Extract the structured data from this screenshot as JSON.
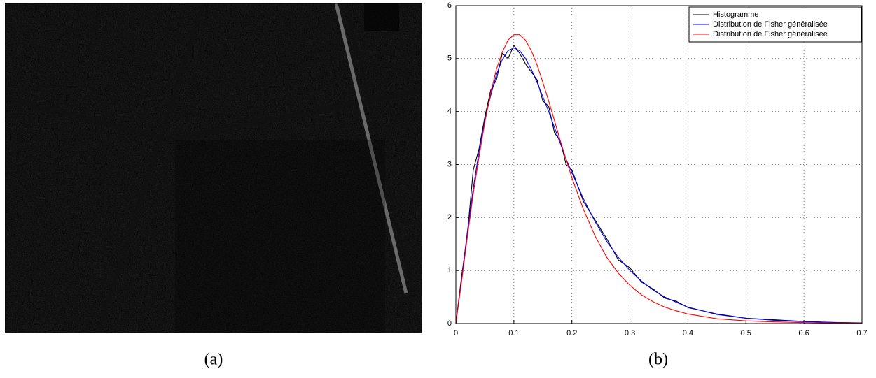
{
  "figure": {
    "captions": [
      "(a)",
      "(b)"
    ]
  },
  "chart_data": {
    "type": "line",
    "x": [
      0,
      0.01,
      0.02,
      0.03,
      0.04,
      0.05,
      0.06,
      0.07,
      0.08,
      0.09,
      0.1,
      0.11,
      0.12,
      0.13,
      0.14,
      0.15,
      0.16,
      0.17,
      0.18,
      0.19,
      0.2,
      0.22,
      0.24,
      0.26,
      0.28,
      0.3,
      0.32,
      0.34,
      0.36,
      0.38,
      0.4,
      0.45,
      0.5,
      0.55,
      0.6,
      0.65,
      0.7
    ],
    "series": [
      {
        "name": "Histogramme",
        "color": "#000000",
        "values": [
          0,
          0.9,
          1.7,
          2.9,
          3.3,
          3.9,
          4.4,
          4.6,
          5.1,
          5.0,
          5.25,
          5.1,
          4.9,
          4.75,
          4.6,
          4.2,
          4.1,
          3.6,
          3.45,
          3.0,
          2.9,
          2.3,
          1.95,
          1.6,
          1.2,
          1.05,
          0.78,
          0.65,
          0.48,
          0.42,
          0.3,
          0.18,
          0.1,
          0.07,
          0.04,
          0.02,
          0.01
        ]
      },
      {
        "name": "Distribution de Fisher généralisée",
        "color": "#0000ff",
        "values": [
          0,
          0.85,
          1.75,
          2.55,
          3.25,
          3.85,
          4.3,
          4.7,
          4.98,
          5.15,
          5.2,
          5.15,
          5.0,
          4.8,
          4.55,
          4.28,
          4.0,
          3.7,
          3.4,
          3.1,
          2.85,
          2.35,
          1.92,
          1.55,
          1.25,
          1.0,
          0.8,
          0.63,
          0.5,
          0.4,
          0.31,
          0.17,
          0.1,
          0.06,
          0.035,
          0.02,
          0.012
        ]
      },
      {
        "name": "Distribution de Fisher généralisée",
        "color": "#ff0000",
        "values": [
          0,
          0.8,
          1.65,
          2.45,
          3.15,
          3.8,
          4.35,
          4.8,
          5.12,
          5.35,
          5.45,
          5.45,
          5.35,
          5.15,
          4.88,
          4.55,
          4.2,
          3.83,
          3.45,
          3.1,
          2.75,
          2.15,
          1.65,
          1.25,
          0.95,
          0.72,
          0.54,
          0.41,
          0.31,
          0.24,
          0.18,
          0.09,
          0.05,
          0.03,
          0.018,
          0.01,
          0.006
        ]
      }
    ],
    "xlim": [
      0,
      0.7
    ],
    "xticks": [
      0,
      0.1,
      0.2,
      0.3,
      0.4,
      0.5,
      0.6,
      0.7
    ],
    "ylim": [
      0,
      6
    ],
    "yticks": [
      0,
      1,
      2,
      3,
      4,
      5,
      6
    ],
    "grid": true,
    "legend": "upper right"
  }
}
